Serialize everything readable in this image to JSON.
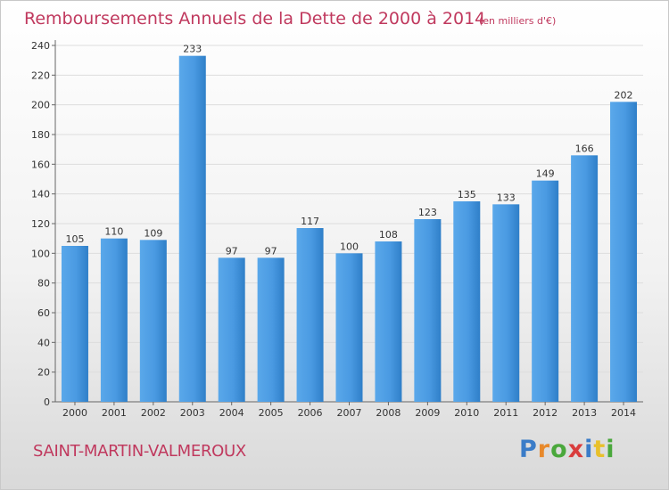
{
  "chart_data": {
    "type": "bar",
    "title": "Remboursements Annuels de la Dette de 2000 à 2014",
    "subtitle": "(en milliers d'€)",
    "categories": [
      "2000",
      "2001",
      "2002",
      "2003",
      "2004",
      "2005",
      "2006",
      "2007",
      "2008",
      "2009",
      "2010",
      "2011",
      "2012",
      "2013",
      "2014"
    ],
    "values": [
      105,
      110,
      109,
      233,
      97,
      97,
      117,
      100,
      108,
      123,
      135,
      133,
      149,
      166,
      202
    ],
    "ylim": [
      0,
      240
    ],
    "yticks": [
      0,
      20,
      40,
      60,
      80,
      100,
      120,
      140,
      160,
      180,
      200,
      220,
      240
    ],
    "grid": true,
    "bar_color": "#3d8fd6",
    "xlabel": "",
    "ylabel": ""
  },
  "location": "SAINT-MARTIN-VALMEROUX",
  "logo": {
    "letters": [
      "P",
      "r",
      "o",
      "x",
      "i",
      "t",
      "i"
    ],
    "colors": [
      "#3a7cc8",
      "#e8892b",
      "#4aa83c",
      "#d93d3d",
      "#3a7cc8",
      "#e8c02b",
      "#4aa83c"
    ]
  }
}
